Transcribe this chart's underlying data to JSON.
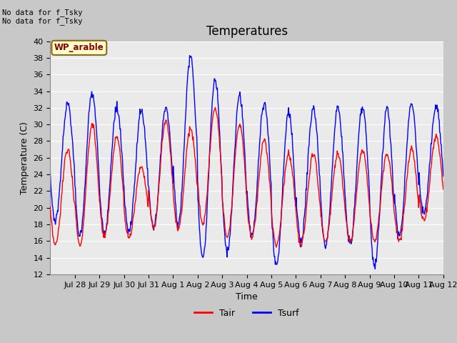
{
  "title": "Temperatures",
  "xlabel": "Time",
  "ylabel": "Temperature (C)",
  "ylim": [
    12,
    40
  ],
  "yticks": [
    12,
    14,
    16,
    18,
    20,
    22,
    24,
    26,
    28,
    30,
    32,
    34,
    36,
    38,
    40
  ],
  "xtick_labels": [
    "Jul 28",
    "Jul 29",
    "Jul 30",
    "Jul 31",
    "Aug 1",
    "Aug 2",
    "Aug 3",
    "Aug 4",
    "Aug 5",
    "Aug 6",
    "Aug 7",
    "Aug 8",
    "Aug 9",
    "Aug 10",
    "Aug 11",
    "Aug 12"
  ],
  "annotation_text": "No data for f_Tsky\nNo data for f_Tsky",
  "legend_label": "WP_arable",
  "tair_color": "#ff0000",
  "tsurf_color": "#0000ff",
  "fig_bg_color": "#c8c8c8",
  "plot_bg_color": "#eaeaea",
  "grid_color": "#ffffff",
  "title_fontsize": 12,
  "label_fontsize": 9,
  "tick_fontsize": 8,
  "legend_fontsize": 9,
  "tair_mins": [
    15.5,
    15.5,
    16.5,
    16.5,
    17.5,
    17.5,
    18.0,
    16.5,
    16.5,
    15.5,
    15.5,
    16.0,
    16.0,
    16.0,
    16.0,
    18.5
  ],
  "tair_maxs": [
    27.0,
    30.0,
    28.5,
    25.0,
    30.5,
    29.5,
    32.0,
    30.0,
    28.0,
    26.5,
    26.5,
    26.5,
    27.0,
    26.5,
    27.0,
    28.5
  ],
  "tsurf_mins": [
    18.5,
    16.5,
    17.0,
    17.0,
    17.5,
    18.0,
    14.0,
    14.5,
    16.5,
    13.0,
    16.0,
    15.5,
    15.5,
    13.0,
    16.5,
    19.5
  ],
  "tsurf_maxs": [
    32.5,
    34.0,
    32.0,
    31.5,
    32.0,
    38.0,
    35.5,
    33.5,
    32.5,
    31.5,
    32.0,
    32.0,
    32.0,
    32.0,
    32.5,
    32.0
  ]
}
